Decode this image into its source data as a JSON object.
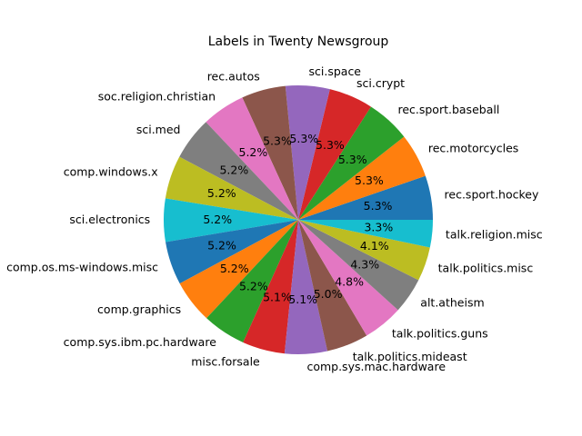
{
  "chart_data": {
    "type": "pie",
    "title": "Labels in Twenty Newsgroup",
    "start_angle_deg": 0,
    "direction": "counterclockwise",
    "slices": [
      {
        "label": "rec.sport.hockey",
        "value": 5.3,
        "pct_label": "5.3%",
        "color": "#1f77b4"
      },
      {
        "label": "rec.motorcycles",
        "value": 5.3,
        "pct_label": "5.3%",
        "color": "#ff7f0e"
      },
      {
        "label": "rec.sport.baseball",
        "value": 5.3,
        "pct_label": "5.3%",
        "color": "#2ca02c"
      },
      {
        "label": "sci.crypt",
        "value": 5.3,
        "pct_label": "5.3%",
        "color": "#d62728"
      },
      {
        "label": "sci.space",
        "value": 5.3,
        "pct_label": "5.3%",
        "color": "#9467bd"
      },
      {
        "label": "rec.autos",
        "value": 5.3,
        "pct_label": "5.3%",
        "color": "#8c564b"
      },
      {
        "label": "soc.religion.christian",
        "value": 5.2,
        "pct_label": "5.2%",
        "color": "#e377c2"
      },
      {
        "label": "sci.med",
        "value": 5.2,
        "pct_label": "5.2%",
        "color": "#7f7f7f"
      },
      {
        "label": "comp.windows.x",
        "value": 5.2,
        "pct_label": "5.2%",
        "color": "#bcbd22"
      },
      {
        "label": "sci.electronics",
        "value": 5.2,
        "pct_label": "5.2%",
        "color": "#17becf"
      },
      {
        "label": "comp.os.ms-windows.misc",
        "value": 5.2,
        "pct_label": "5.2%",
        "color": "#1f77b4"
      },
      {
        "label": "comp.graphics",
        "value": 5.2,
        "pct_label": "5.2%",
        "color": "#ff7f0e"
      },
      {
        "label": "comp.sys.ibm.pc.hardware",
        "value": 5.2,
        "pct_label": "5.2%",
        "color": "#2ca02c"
      },
      {
        "label": "misc.forsale",
        "value": 5.1,
        "pct_label": "5.1%",
        "color": "#d62728"
      },
      {
        "label": "comp.sys.mac.hardware",
        "value": 5.1,
        "pct_label": "5.1%",
        "color": "#9467bd"
      },
      {
        "label": "talk.politics.mideast",
        "value": 5.0,
        "pct_label": "5.0%",
        "color": "#8c564b"
      },
      {
        "label": "talk.politics.guns",
        "value": 4.8,
        "pct_label": "4.8%",
        "color": "#e377c2"
      },
      {
        "label": "alt.atheism",
        "value": 4.3,
        "pct_label": "4.3%",
        "color": "#7f7f7f"
      },
      {
        "label": "talk.politics.misc",
        "value": 4.1,
        "pct_label": "4.1%",
        "color": "#bcbd22"
      },
      {
        "label": "talk.religion.misc",
        "value": 3.3,
        "pct_label": "3.3%",
        "color": "#17becf"
      }
    ]
  }
}
